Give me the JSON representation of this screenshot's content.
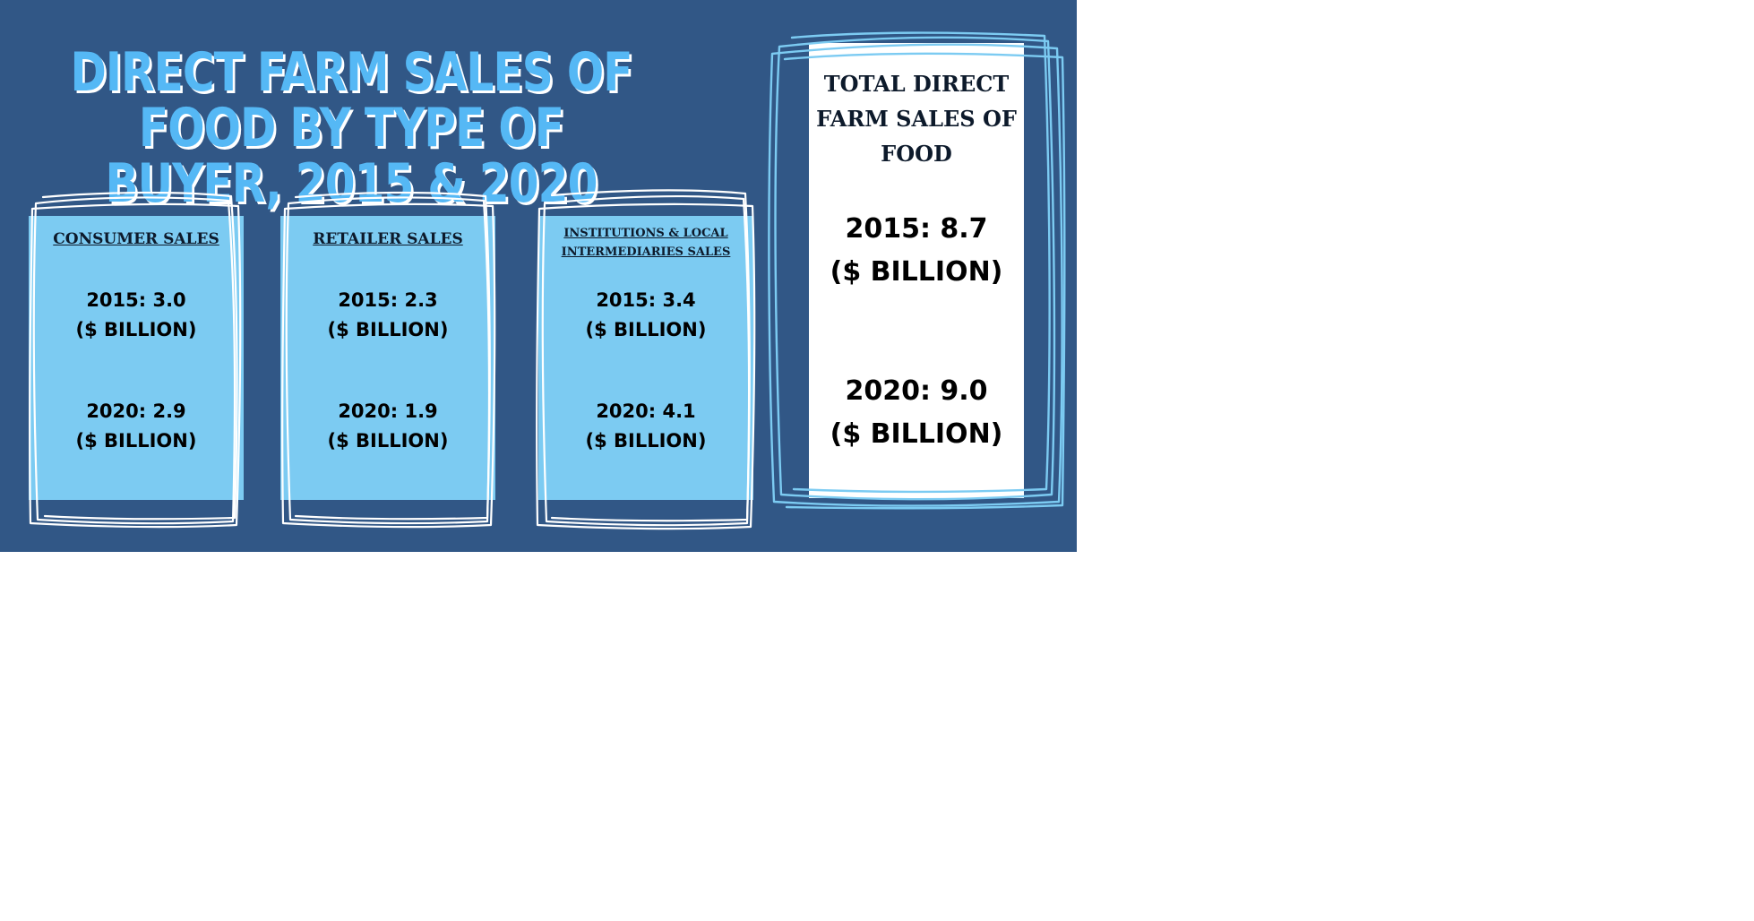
{
  "title": "DIRECT FARM SALES OF FOOD BY TYPE OF BUYER, 2015 & 2020",
  "cards": [
    {
      "heading": "CONSUMER SALES",
      "value_2015": "2015: 3.0",
      "value_2020": "2020: 2.9",
      "unit": "($ BILLION)"
    },
    {
      "heading": "RETAILER SALES",
      "value_2015": "2015: 2.3",
      "value_2020": "2020: 1.9",
      "unit": "($ BILLION)"
    },
    {
      "heading": "INSTITUTIONS & LOCAL INTERMEDIARIES SALES",
      "value_2015": "2015: 3.4",
      "value_2020": "2020: 4.1",
      "unit": "($ BILLION)"
    }
  ],
  "total": {
    "heading": "TOTAL DIRECT FARM SALES OF FOOD",
    "value_2015": "2015: 8.7",
    "value_2020": "2020: 9.0",
    "unit": "($ BILLION)"
  },
  "colors": {
    "background": "#315786",
    "card": "#7ccbf2",
    "title": "#55b8f5",
    "total_card": "#ffffff"
  }
}
